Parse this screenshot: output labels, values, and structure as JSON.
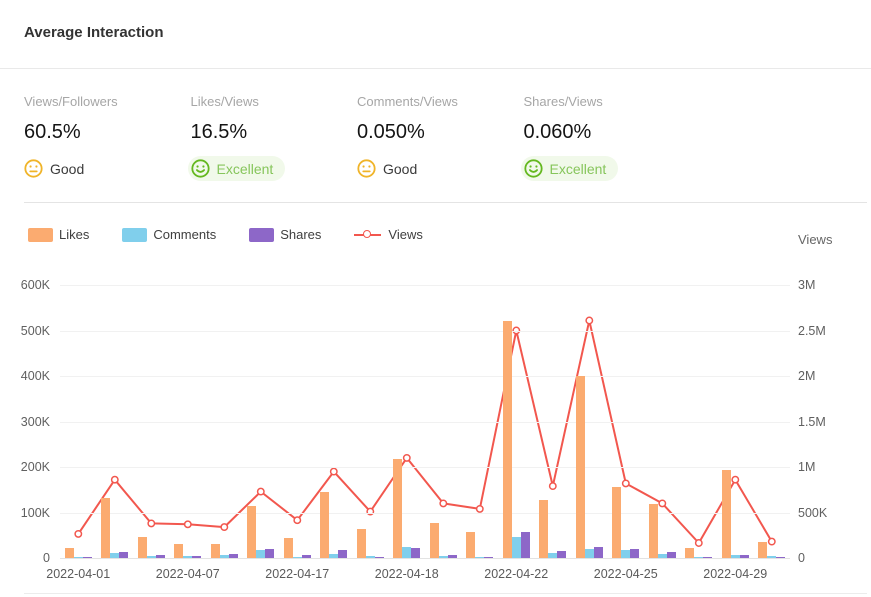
{
  "header": {
    "title": "Average Interaction"
  },
  "metrics": [
    {
      "label": "Views/Followers",
      "value": "60.5%",
      "rating": "Good",
      "sentiment": "good"
    },
    {
      "label": "Likes/Views",
      "value": "16.5%",
      "rating": "Excellent",
      "sentiment": "excellent"
    },
    {
      "label": "Comments/Views",
      "value": "0.050%",
      "rating": "Good",
      "sentiment": "good"
    },
    {
      "label": "Shares/Views",
      "value": "0.060%",
      "rating": "Excellent",
      "sentiment": "excellent"
    }
  ],
  "legend": [
    {
      "label": "Likes"
    },
    {
      "label": "Comments"
    },
    {
      "label": "Shares"
    },
    {
      "label": "Views"
    }
  ],
  "colors": {
    "likes": "#fbab70",
    "comments": "#80cfec",
    "shares": "#8d67c8",
    "views": "#f2574e",
    "good": "#f0b429",
    "excellent": "#64b81f",
    "excellent_bg": "#f1f9ea"
  },
  "chart_data": {
    "type": "bar+line",
    "categories": [
      "2022-04-01",
      "",
      "",
      "2022-04-07",
      "",
      "",
      "2022-04-17",
      "",
      "",
      "2022-04-18",
      "",
      "",
      "2022-04-22",
      "",
      "",
      "2022-04-25",
      "",
      "",
      "2022-04-29",
      ""
    ],
    "series": [
      {
        "name": "Likes",
        "type": "bar",
        "axis": "left",
        "color": "#fbab70",
        "values": [
          23000,
          131000,
          47000,
          31000,
          31000,
          115000,
          45000,
          144000,
          64000,
          218000,
          78000,
          58000,
          522000,
          127000,
          400000,
          155000,
          118000,
          23000,
          194000,
          36000
        ]
      },
      {
        "name": "Comments",
        "type": "bar",
        "axis": "left",
        "color": "#80cfec",
        "values": [
          3000,
          11000,
          4000,
          4000,
          7000,
          18000,
          3000,
          9000,
          4000,
          24000,
          4000,
          2000,
          46000,
          10000,
          20000,
          17000,
          9000,
          2000,
          7000,
          4000
        ]
      },
      {
        "name": "Shares",
        "type": "bar",
        "axis": "left",
        "color": "#8d67c8",
        "values": [
          2000,
          14000,
          6000,
          5000,
          9000,
          20000,
          7000,
          17000,
          2000,
          22000,
          7000,
          3000,
          58000,
          15000,
          24000,
          20000,
          13000,
          2000,
          7000,
          2000
        ]
      },
      {
        "name": "Views",
        "type": "line",
        "axis": "right",
        "color": "#f2574e",
        "values": [
          265000,
          860000,
          380000,
          370000,
          340000,
          730000,
          415000,
          950000,
          510000,
          1100000,
          600000,
          540000,
          2500000,
          790000,
          2610000,
          820000,
          600000,
          165000,
          860000,
          180000
        ]
      }
    ],
    "left_axis": {
      "max": 600000,
      "ticks": [
        "600K",
        "500K",
        "400K",
        "300K",
        "200K",
        "100K",
        "0"
      ]
    },
    "right_axis": {
      "name": "Views",
      "max": 3000000,
      "ticks": [
        "3M",
        "2.5M",
        "2M",
        "1.5M",
        "1M",
        "500K",
        "0"
      ]
    },
    "grid": true,
    "legend_position": "top-left"
  }
}
